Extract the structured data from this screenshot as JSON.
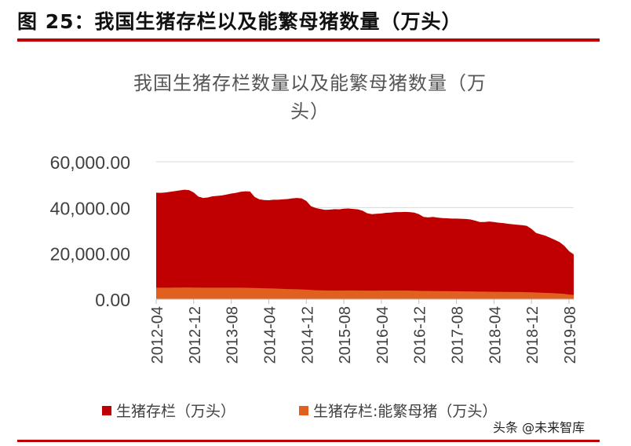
{
  "figure": {
    "caption": "图 25：我国生猪存栏以及能繁母猪数量（万头）"
  },
  "watermark": "头条 @未来智库",
  "colors": {
    "rule": "#c00000",
    "series_total": "#c00000",
    "series_sows": "#e06020",
    "grid": "#d9d9d9"
  },
  "chart_data": {
    "type": "area",
    "title": "我国生猪存栏数量以及能繁母猪数量（万头）",
    "title_lines": [
      "我国生猪存栏数量以及能繁母猪数量（万",
      "头）"
    ],
    "ylim": [
      0,
      60000
    ],
    "yticks": [
      "0.00",
      "20,000.00",
      "40,000.00",
      "60,000.00"
    ],
    "ytick_values": [
      0,
      20000,
      40000,
      60000
    ],
    "x_tick_labels": [
      "2012-04",
      "2012-12",
      "2013-08",
      "2014-04",
      "2014-12",
      "2015-08",
      "2016-04",
      "2016-12",
      "2017-08",
      "2018-04",
      "2018-12",
      "2019-08"
    ],
    "x": [
      "2012-04",
      "2012-05",
      "2012-06",
      "2012-07",
      "2012-08",
      "2012-09",
      "2012-10",
      "2012-11",
      "2012-12",
      "2013-01",
      "2013-02",
      "2013-03",
      "2013-04",
      "2013-05",
      "2013-06",
      "2013-07",
      "2013-08",
      "2013-09",
      "2013-10",
      "2013-11",
      "2013-12",
      "2014-01",
      "2014-02",
      "2014-03",
      "2014-04",
      "2014-05",
      "2014-06",
      "2014-07",
      "2014-08",
      "2014-09",
      "2014-10",
      "2014-11",
      "2014-12",
      "2015-01",
      "2015-02",
      "2015-03",
      "2015-04",
      "2015-05",
      "2015-06",
      "2015-07",
      "2015-08",
      "2015-09",
      "2015-10",
      "2015-11",
      "2015-12",
      "2016-01",
      "2016-02",
      "2016-03",
      "2016-04",
      "2016-05",
      "2016-06",
      "2016-07",
      "2016-08",
      "2016-09",
      "2016-10",
      "2016-11",
      "2016-12",
      "2017-01",
      "2017-02",
      "2017-03",
      "2017-04",
      "2017-05",
      "2017-06",
      "2017-07",
      "2017-08",
      "2017-09",
      "2017-10",
      "2017-11",
      "2017-12",
      "2018-01",
      "2018-02",
      "2018-03",
      "2018-04",
      "2018-05",
      "2018-06",
      "2018-07",
      "2018-08",
      "2018-09",
      "2018-10",
      "2018-11",
      "2018-12",
      "2019-01",
      "2019-02",
      "2019-03",
      "2019-04",
      "2019-05",
      "2019-06",
      "2019-07",
      "2019-08",
      "2019-09"
    ],
    "series": [
      {
        "name": "生猪存栏（万头）",
        "values": [
          46500,
          46400,
          46600,
          46900,
          47200,
          47500,
          47800,
          47600,
          46600,
          44800,
          44200,
          44400,
          44900,
          45100,
          45300,
          45700,
          46100,
          46400,
          46900,
          47100,
          47000,
          44600,
          43600,
          43300,
          43200,
          43400,
          43400,
          43600,
          43700,
          44000,
          44200,
          44000,
          42900,
          40600,
          39800,
          39400,
          39000,
          39100,
          39300,
          39200,
          39500,
          39600,
          39400,
          39200,
          38600,
          37500,
          37100,
          37300,
          37400,
          37700,
          37800,
          38000,
          38000,
          38100,
          38000,
          37800,
          37100,
          35900,
          35700,
          35900,
          35600,
          35400,
          35300,
          35200,
          35200,
          35100,
          35000,
          34800,
          34300,
          33700,
          33700,
          33900,
          33700,
          33400,
          33200,
          32900,
          32700,
          32500,
          32300,
          32000,
          30700,
          28900,
          28300,
          27700,
          26800,
          25900,
          24900,
          23300,
          21000,
          19500
        ]
      },
      {
        "name": "生猪存栏:能繁母猪（万头）",
        "values": [
          5000,
          5000,
          5000,
          5000,
          5050,
          5070,
          5080,
          5080,
          5070,
          5050,
          5030,
          5010,
          5000,
          5000,
          5000,
          5000,
          5000,
          5000,
          5000,
          4980,
          4930,
          4880,
          4820,
          4750,
          4710,
          4660,
          4580,
          4500,
          4420,
          4360,
          4310,
          4250,
          4150,
          4030,
          3920,
          3860,
          3820,
          3790,
          3780,
          3780,
          3790,
          3800,
          3800,
          3780,
          3760,
          3720,
          3720,
          3740,
          3760,
          3780,
          3790,
          3790,
          3780,
          3760,
          3740,
          3700,
          3660,
          3610,
          3580,
          3560,
          3540,
          3520,
          3500,
          3480,
          3460,
          3440,
          3400,
          3380,
          3350,
          3310,
          3280,
          3260,
          3230,
          3200,
          3180,
          3160,
          3130,
          3110,
          3080,
          3040,
          2980,
          2930,
          2850,
          2750,
          2680,
          2580,
          2450,
          2300,
          2030,
          1900
        ]
      }
    ],
    "legend_position": "bottom",
    "grid": true
  }
}
